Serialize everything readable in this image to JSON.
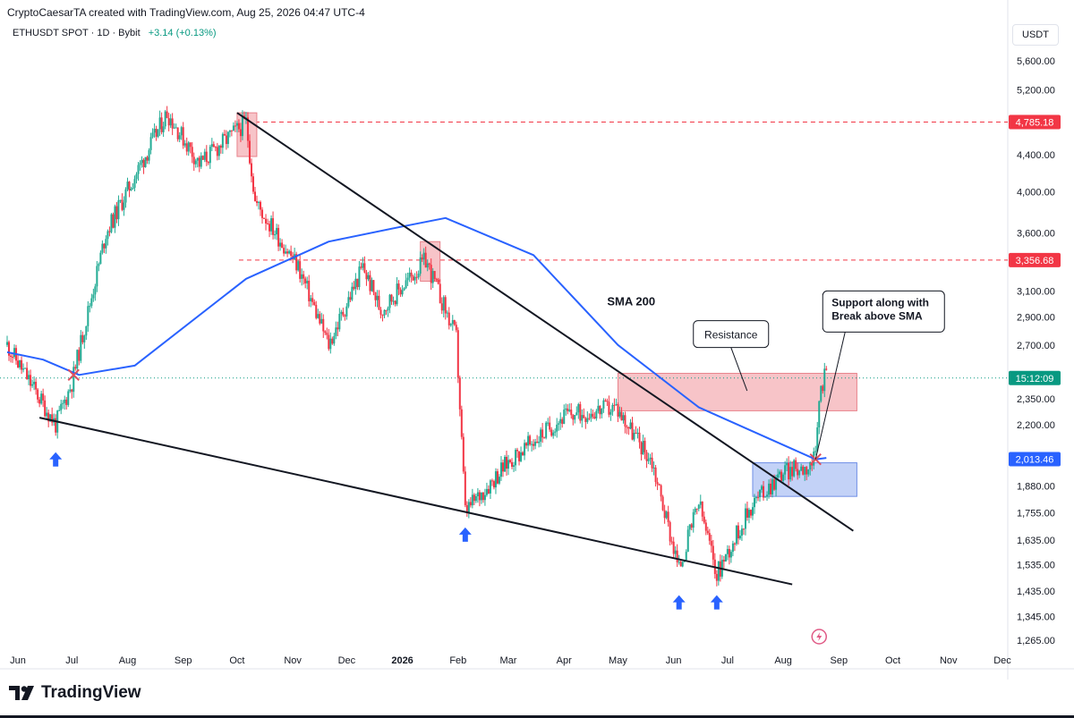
{
  "header": {
    "attribution": "CryptoCaesarTA created with TradingView.com, Aug 25, 2026 04:47 UTC-4",
    "symbol": "ETHUSDT SPOT · 1D · Bybit",
    "change": "+3.14 (+0.13%)",
    "currency": "USDT"
  },
  "footer": {
    "brand": "TradingView"
  },
  "colors": {
    "up": "#22ab94",
    "down": "#f23645",
    "sma": "#2962ff",
    "resistance_fill": "#f7c4c8",
    "support_fill": "#c3d2f7",
    "price_label": "#f23645",
    "current_label": "#089981"
  },
  "chart_data": {
    "type": "candlestick",
    "y_scale": "log",
    "ylim": [
      1210,
      6000
    ],
    "y_ticks": [
      "5,600.00",
      "5,200.00",
      "4,400.00",
      "4,000.00",
      "3,600.00",
      "3,100.00",
      "2,900.00",
      "2,700.00",
      "2,350.00",
      "2,200.00",
      "1,880.00",
      "1,755.00",
      "1,635.00",
      "1,535.00",
      "1,435.00",
      "1,345.00",
      "1,265.00"
    ],
    "x_ticks": [
      "Jun",
      "Jul",
      "Aug",
      "Sep",
      "Oct",
      "Nov",
      "Dec",
      "2026",
      "Feb",
      "Mar",
      "Apr",
      "May",
      "Jun",
      "Jul",
      "Aug",
      "Sep",
      "Oct",
      "Nov",
      "Dec"
    ],
    "price_key_points": [
      {
        "date": "2025-05-26",
        "close": 2700
      },
      {
        "date": "2025-06-22",
        "close": 2200
      },
      {
        "date": "2025-07-01",
        "close": 2450
      },
      {
        "date": "2025-07-20",
        "close": 3600
      },
      {
        "date": "2025-08-23",
        "close": 4900
      },
      {
        "date": "2025-09-10",
        "close": 4300
      },
      {
        "date": "2025-10-06",
        "close": 4785
      },
      {
        "date": "2025-10-11",
        "close": 3900
      },
      {
        "date": "2025-11-04",
        "close": 3300
      },
      {
        "date": "2025-11-21",
        "close": 2700
      },
      {
        "date": "2025-12-10",
        "close": 3300
      },
      {
        "date": "2025-12-20",
        "close": 2950
      },
      {
        "date": "2026-01-14",
        "close": 3356
      },
      {
        "date": "2026-01-31",
        "close": 2750
      },
      {
        "date": "2026-02-05",
        "close": 1760
      },
      {
        "date": "2026-03-01",
        "close": 2000
      },
      {
        "date": "2026-04-01",
        "close": 2250
      },
      {
        "date": "2026-04-30",
        "close": 2300
      },
      {
        "date": "2026-05-20",
        "close": 2000
      },
      {
        "date": "2026-06-04",
        "close": 1520
      },
      {
        "date": "2026-06-15",
        "close": 1800
      },
      {
        "date": "2026-06-25",
        "close": 1500
      },
      {
        "date": "2026-07-15",
        "close": 1800
      },
      {
        "date": "2026-08-01",
        "close": 1950
      },
      {
        "date": "2026-08-15",
        "close": 1980
      },
      {
        "date": "2026-08-19",
        "close": 2013
      },
      {
        "date": "2026-08-21",
        "close": 2350
      },
      {
        "date": "2026-08-25",
        "close": 2560
      }
    ],
    "sma_200_points": [
      {
        "date": "2025-05-26",
        "value": 2650
      },
      {
        "date": "2025-06-15",
        "value": 2600
      },
      {
        "date": "2025-07-05",
        "value": 2500
      },
      {
        "date": "2025-08-05",
        "value": 2560
      },
      {
        "date": "2025-10-06",
        "value": 3200
      },
      {
        "date": "2025-11-21",
        "value": 3520
      },
      {
        "date": "2026-01-01",
        "value": 3660
      },
      {
        "date": "2026-01-25",
        "value": 3740
      },
      {
        "date": "2026-03-15",
        "value": 3400
      },
      {
        "date": "2026-05-01",
        "value": 2700
      },
      {
        "date": "2026-06-15",
        "value": 2300
      },
      {
        "date": "2026-08-19",
        "value": 2013
      },
      {
        "date": "2026-08-25",
        "value": 2020
      }
    ],
    "price_labels": [
      {
        "text": "4,785.18",
        "price": 4785.18,
        "style": "red"
      },
      {
        "text": "3,356.68",
        "price": 3356.68,
        "style": "red"
      },
      {
        "text": "15:12:09",
        "price": 2480,
        "style": "green"
      },
      {
        "text": "2,013.46",
        "price": 2013.46,
        "style": "blue"
      }
    ],
    "annotations": {
      "sma_label": "SMA 200",
      "resistance_label": "Resistance",
      "support_label": "Support along with Break above SMA"
    },
    "resistance_zone": {
      "from": "2026-05-01",
      "to": "2026-09-11",
      "low": 2280,
      "high": 2510
    },
    "support_zone": {
      "from": "2026-07-15",
      "to": "2026-09-11",
      "low": 1830,
      "high": 1995
    }
  }
}
